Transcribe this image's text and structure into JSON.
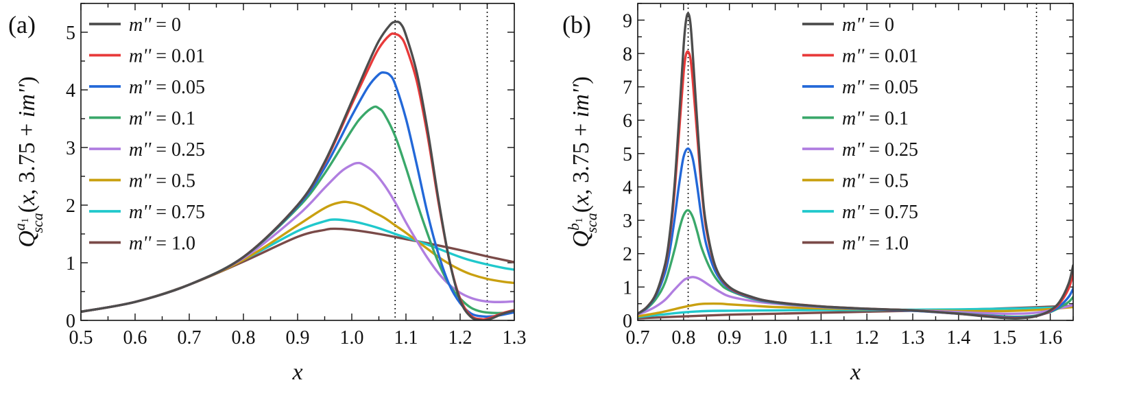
{
  "chart_data": [
    {
      "type": "line",
      "panel_label": "(a)",
      "xlabel": "x",
      "ylabel": "Q_sca^{a_1}(x, 3.75 + im'')",
      "xlim": [
        0.5,
        1.3
      ],
      "ylim": [
        0,
        5.5
      ],
      "xticks": [
        0.5,
        0.6,
        0.7,
        0.8,
        0.9,
        1.0,
        1.1,
        1.2,
        1.3
      ],
      "xtick_labels": [
        "0.5",
        "0.6",
        "0.7",
        "0.8",
        "0.9",
        "1.0",
        "1.1",
        "1.2",
        "1.3"
      ],
      "yticks": [
        0,
        1,
        2,
        3,
        4,
        5
      ],
      "ytick_labels": [
        "0",
        "1",
        "2",
        "3",
        "4",
        "5"
      ],
      "vlines": [
        1.08,
        1.25
      ],
      "legend_position": "top-left",
      "series": [
        {
          "name": "m'' = 0",
          "color": "#4d4d4d",
          "x": [
            0.5,
            0.6,
            0.7,
            0.8,
            0.9,
            0.95,
            1.0,
            1.03,
            1.05,
            1.07,
            1.08,
            1.09,
            1.1,
            1.12,
            1.14,
            1.16,
            1.18,
            1.2,
            1.22,
            1.24,
            1.25,
            1.26,
            1.28,
            1.3
          ],
          "y": [
            0.15,
            0.32,
            0.62,
            1.1,
            2.0,
            2.75,
            3.8,
            4.45,
            4.85,
            5.12,
            5.18,
            5.15,
            4.95,
            4.3,
            3.3,
            2.1,
            1.05,
            0.35,
            0.06,
            0.0,
            0.01,
            0.04,
            0.12,
            0.17
          ]
        },
        {
          "name": "m'' = 0.01",
          "color": "#e83a3a",
          "x": [
            0.5,
            0.6,
            0.7,
            0.8,
            0.9,
            0.95,
            1.0,
            1.03,
            1.05,
            1.07,
            1.08,
            1.09,
            1.1,
            1.12,
            1.14,
            1.16,
            1.18,
            1.2,
            1.22,
            1.24,
            1.25,
            1.26,
            1.28,
            1.3
          ],
          "y": [
            0.15,
            0.32,
            0.62,
            1.1,
            2.0,
            2.73,
            3.75,
            4.35,
            4.72,
            4.95,
            4.97,
            4.92,
            4.75,
            4.15,
            3.2,
            2.05,
            1.05,
            0.38,
            0.08,
            0.02,
            0.03,
            0.06,
            0.13,
            0.18
          ]
        },
        {
          "name": "m'' = 0.05",
          "color": "#2368d8",
          "x": [
            0.5,
            0.6,
            0.7,
            0.8,
            0.9,
            0.95,
            1.0,
            1.03,
            1.05,
            1.06,
            1.07,
            1.08,
            1.1,
            1.12,
            1.14,
            1.16,
            1.18,
            1.2,
            1.22,
            1.24,
            1.26,
            1.28,
            1.3
          ],
          "y": [
            0.15,
            0.32,
            0.62,
            1.1,
            1.98,
            2.65,
            3.55,
            4.05,
            4.27,
            4.3,
            4.26,
            4.1,
            3.5,
            2.7,
            1.85,
            1.15,
            0.62,
            0.3,
            0.12,
            0.07,
            0.07,
            0.1,
            0.14
          ]
        },
        {
          "name": "m'' = 0.1",
          "color": "#3aa86a",
          "x": [
            0.5,
            0.6,
            0.7,
            0.8,
            0.9,
            0.95,
            1.0,
            1.02,
            1.04,
            1.05,
            1.06,
            1.08,
            1.1,
            1.12,
            1.14,
            1.16,
            1.18,
            1.2,
            1.22,
            1.24,
            1.26,
            1.28,
            1.3
          ],
          "y": [
            0.15,
            0.32,
            0.62,
            1.1,
            1.95,
            2.55,
            3.3,
            3.55,
            3.7,
            3.68,
            3.58,
            3.2,
            2.65,
            2.05,
            1.5,
            1.0,
            0.62,
            0.38,
            0.22,
            0.15,
            0.13,
            0.13,
            0.15
          ]
        },
        {
          "name": "m'' = 0.25",
          "color": "#b07ee0",
          "x": [
            0.5,
            0.6,
            0.7,
            0.8,
            0.9,
            0.95,
            0.98,
            1.0,
            1.01,
            1.02,
            1.04,
            1.06,
            1.08,
            1.1,
            1.12,
            1.14,
            1.16,
            1.18,
            1.2,
            1.22,
            1.24,
            1.26,
            1.28,
            1.3
          ],
          "y": [
            0.15,
            0.32,
            0.62,
            1.08,
            1.82,
            2.3,
            2.58,
            2.7,
            2.73,
            2.71,
            2.58,
            2.35,
            2.05,
            1.7,
            1.38,
            1.08,
            0.82,
            0.62,
            0.48,
            0.39,
            0.34,
            0.32,
            0.32,
            0.33
          ]
        },
        {
          "name": "m'' = 0.5",
          "color": "#c9a010",
          "x": [
            0.5,
            0.6,
            0.7,
            0.8,
            0.9,
            0.95,
            0.98,
            1.0,
            1.02,
            1.04,
            1.06,
            1.08,
            1.1,
            1.12,
            1.14,
            1.16,
            1.18,
            1.2,
            1.22,
            1.25,
            1.28,
            1.3
          ],
          "y": [
            0.15,
            0.32,
            0.62,
            1.05,
            1.65,
            1.95,
            2.05,
            2.04,
            1.98,
            1.88,
            1.78,
            1.65,
            1.52,
            1.38,
            1.24,
            1.1,
            0.98,
            0.88,
            0.8,
            0.72,
            0.67,
            0.65
          ]
        },
        {
          "name": "m'' = 0.75",
          "color": "#20c8cc",
          "x": [
            0.5,
            0.6,
            0.7,
            0.8,
            0.9,
            0.95,
            0.97,
            1.0,
            1.02,
            1.05,
            1.08,
            1.1,
            1.12,
            1.15,
            1.18,
            1.2,
            1.22,
            1.25,
            1.28,
            1.3
          ],
          "y": [
            0.15,
            0.32,
            0.62,
            1.05,
            1.55,
            1.72,
            1.75,
            1.72,
            1.68,
            1.6,
            1.5,
            1.44,
            1.38,
            1.28,
            1.17,
            1.1,
            1.04,
            0.97,
            0.91,
            0.88
          ]
        },
        {
          "name": "m'' = 1.0",
          "color": "#7a4a48",
          "x": [
            0.5,
            0.6,
            0.7,
            0.8,
            0.9,
            0.95,
            0.97,
            1.0,
            1.05,
            1.1,
            1.15,
            1.2,
            1.25,
            1.3
          ],
          "y": [
            0.15,
            0.32,
            0.62,
            1.02,
            1.45,
            1.57,
            1.59,
            1.57,
            1.5,
            1.41,
            1.32,
            1.22,
            1.11,
            1.01
          ]
        }
      ]
    },
    {
      "type": "line",
      "panel_label": "(b)",
      "xlabel": "x",
      "ylabel": "Q_sca^{b_1}(x, 3.75 + im'')",
      "xlim": [
        0.7,
        1.65
      ],
      "ylim": [
        0,
        9.5
      ],
      "xticks": [
        0.7,
        0.8,
        0.9,
        1.0,
        1.1,
        1.2,
        1.3,
        1.4,
        1.5,
        1.6
      ],
      "xtick_labels": [
        "0.7",
        "0.8",
        "0.9",
        "1.0",
        "1.1",
        "1.2",
        "1.3",
        "1.4",
        "1.5",
        "1.6"
      ],
      "yticks": [
        0,
        1,
        2,
        3,
        4,
        5,
        6,
        7,
        8,
        9
      ],
      "ytick_labels": [
        "0",
        "1",
        "2",
        "3",
        "4",
        "5",
        "6",
        "7",
        "8",
        "9"
      ],
      "vlines": [
        0.81,
        1.57
      ],
      "legend_position": "top-center",
      "series": [
        {
          "name": "m'' = 0",
          "color": "#4d4d4d",
          "x": [
            0.7,
            0.72,
            0.74,
            0.76,
            0.77,
            0.78,
            0.79,
            0.8,
            0.805,
            0.81,
            0.815,
            0.82,
            0.83,
            0.84,
            0.85,
            0.87,
            0.9,
            0.95,
            1.0,
            1.1,
            1.2,
            1.3,
            1.4,
            1.45,
            1.5,
            1.53,
            1.56,
            1.58,
            1.6,
            1.62,
            1.64,
            1.65
          ],
          "y": [
            0.2,
            0.4,
            0.8,
            1.7,
            2.6,
            4.0,
            6.0,
            8.2,
            8.95,
            9.2,
            8.9,
            8.0,
            5.9,
            4.0,
            2.8,
            1.6,
            1.0,
            0.7,
            0.55,
            0.42,
            0.35,
            0.3,
            0.2,
            0.13,
            0.07,
            0.06,
            0.1,
            0.17,
            0.3,
            0.55,
            1.1,
            1.65
          ]
        },
        {
          "name": "m'' = 0.01",
          "color": "#e83a3a",
          "x": [
            0.7,
            0.72,
            0.74,
            0.76,
            0.77,
            0.78,
            0.79,
            0.8,
            0.805,
            0.81,
            0.815,
            0.82,
            0.83,
            0.84,
            0.85,
            0.87,
            0.9,
            0.95,
            1.0,
            1.1,
            1.2,
            1.3,
            1.4,
            1.45,
            1.5,
            1.53,
            1.56,
            1.58,
            1.6,
            1.62,
            1.64,
            1.65
          ],
          "y": [
            0.2,
            0.4,
            0.8,
            1.65,
            2.5,
            3.8,
            5.6,
            7.4,
            7.95,
            8.05,
            7.85,
            7.2,
            5.5,
            3.85,
            2.7,
            1.58,
            0.98,
            0.69,
            0.55,
            0.42,
            0.35,
            0.3,
            0.2,
            0.14,
            0.08,
            0.07,
            0.1,
            0.17,
            0.28,
            0.5,
            0.95,
            1.4
          ]
        },
        {
          "name": "m'' = 0.05",
          "color": "#2368d8",
          "x": [
            0.7,
            0.72,
            0.74,
            0.76,
            0.77,
            0.78,
            0.79,
            0.8,
            0.81,
            0.82,
            0.83,
            0.84,
            0.85,
            0.87,
            0.9,
            0.95,
            1.0,
            1.1,
            1.2,
            1.3,
            1.4,
            1.45,
            1.5,
            1.53,
            1.56,
            1.58,
            1.6,
            1.62,
            1.64,
            1.65
          ],
          "y": [
            0.2,
            0.38,
            0.75,
            1.45,
            2.1,
            3.0,
            4.05,
            4.9,
            5.15,
            4.85,
            4.0,
            3.0,
            2.25,
            1.45,
            0.95,
            0.67,
            0.54,
            0.41,
            0.34,
            0.29,
            0.2,
            0.15,
            0.1,
            0.09,
            0.11,
            0.17,
            0.26,
            0.42,
            0.7,
            0.95
          ]
        },
        {
          "name": "m'' = 0.1",
          "color": "#3aa86a",
          "x": [
            0.7,
            0.72,
            0.74,
            0.76,
            0.78,
            0.79,
            0.8,
            0.81,
            0.82,
            0.83,
            0.84,
            0.86,
            0.88,
            0.9,
            0.95,
            1.0,
            1.1,
            1.2,
            1.3,
            1.4,
            1.45,
            1.5,
            1.53,
            1.56,
            1.58,
            1.6,
            1.62,
            1.64,
            1.65
          ],
          "y": [
            0.2,
            0.36,
            0.65,
            1.15,
            2.1,
            2.7,
            3.15,
            3.3,
            3.1,
            2.65,
            2.15,
            1.5,
            1.1,
            0.9,
            0.65,
            0.53,
            0.41,
            0.34,
            0.29,
            0.21,
            0.16,
            0.12,
            0.11,
            0.13,
            0.18,
            0.25,
            0.38,
            0.55,
            0.7
          ]
        },
        {
          "name": "m'' = 0.25",
          "color": "#b07ee0",
          "x": [
            0.7,
            0.72,
            0.74,
            0.76,
            0.78,
            0.8,
            0.81,
            0.82,
            0.83,
            0.84,
            0.86,
            0.88,
            0.9,
            0.95,
            1.0,
            1.1,
            1.2,
            1.3,
            1.4,
            1.45,
            1.5,
            1.55,
            1.58,
            1.6,
            1.62,
            1.65
          ],
          "y": [
            0.18,
            0.28,
            0.42,
            0.62,
            0.92,
            1.2,
            1.27,
            1.3,
            1.27,
            1.2,
            1.02,
            0.85,
            0.72,
            0.58,
            0.5,
            0.4,
            0.34,
            0.3,
            0.25,
            0.22,
            0.2,
            0.21,
            0.25,
            0.3,
            0.36,
            0.46
          ]
        },
        {
          "name": "m'' = 0.5",
          "color": "#c9a010",
          "x": [
            0.7,
            0.75,
            0.8,
            0.83,
            0.85,
            0.88,
            0.9,
            0.95,
            1.0,
            1.1,
            1.2,
            1.3,
            1.4,
            1.5,
            1.55,
            1.6,
            1.65
          ],
          "y": [
            0.12,
            0.24,
            0.4,
            0.48,
            0.5,
            0.5,
            0.48,
            0.44,
            0.4,
            0.36,
            0.33,
            0.3,
            0.28,
            0.28,
            0.3,
            0.34,
            0.4
          ]
        },
        {
          "name": "m'' = 0.75",
          "color": "#20c8cc",
          "x": [
            0.7,
            0.75,
            0.8,
            0.85,
            0.9,
            1.0,
            1.1,
            1.2,
            1.3,
            1.4,
            1.5,
            1.6,
            1.65
          ],
          "y": [
            0.1,
            0.17,
            0.24,
            0.28,
            0.29,
            0.3,
            0.31,
            0.31,
            0.32,
            0.33,
            0.35,
            0.38,
            0.41
          ]
        },
        {
          "name": "m'' = 1.0",
          "color": "#7a4a48",
          "x": [
            0.7,
            0.8,
            0.9,
            1.0,
            1.1,
            1.2,
            1.3,
            1.4,
            1.5,
            1.6,
            1.65
          ],
          "y": [
            0.06,
            0.12,
            0.17,
            0.2,
            0.23,
            0.26,
            0.29,
            0.32,
            0.36,
            0.41,
            0.44
          ]
        }
      ]
    }
  ]
}
